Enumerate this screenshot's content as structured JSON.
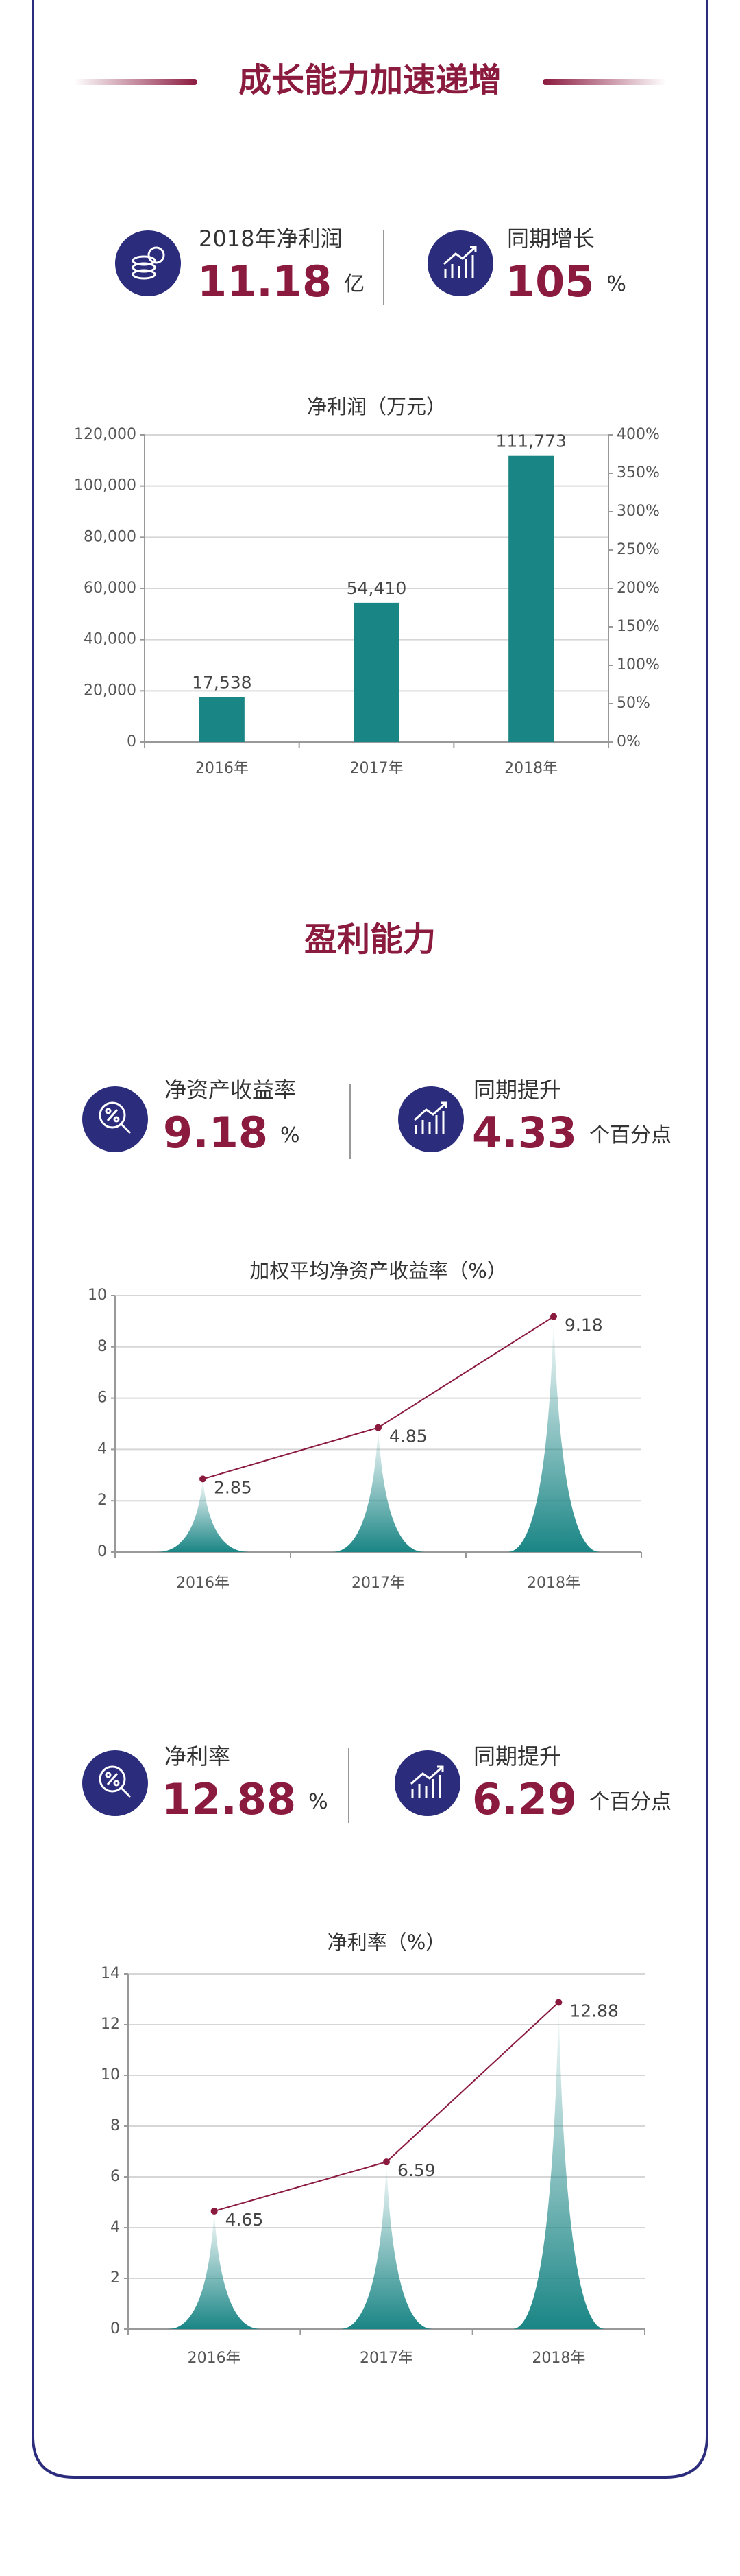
{
  "header": {
    "title": "成长能力加速递增"
  },
  "kpi_row_1": [
    {
      "label": "2018年净利润",
      "value": 11.18,
      "unit": "亿"
    },
    {
      "label": "同期增长",
      "value": 105,
      "unit": "%"
    }
  ],
  "section_2": {
    "title": "盈利能力"
  },
  "kpi_row_2": [
    {
      "label": "净资产收益率",
      "value": 9.18,
      "unit": "%"
    },
    {
      "label": "同期提升",
      "value": 4.33,
      "unit": "个百分点"
    }
  ],
  "kpi_row_3": [
    {
      "label": "净利率",
      "value": 12.88,
      "unit": "%"
    },
    {
      "label": "同期提升",
      "value": 6.29,
      "unit": "个百分点"
    }
  ],
  "chart_data": [
    {
      "type": "bar",
      "title": "净利润（万元）",
      "categories": [
        "2016年",
        "2017年",
        "2018年"
      ],
      "values": [
        17538,
        54410,
        111773
      ],
      "value_labels": [
        "17,538",
        "54,410",
        "111,773"
      ],
      "color": "#1a8585",
      "ylim": [
        0,
        120000
      ],
      "yticks": [
        0,
        {
          "value": 20000,
          "label": "20,000"
        },
        {
          "value": 40000,
          "label": "40,000"
        },
        {
          "value": 60000,
          "label": "60,000"
        },
        {
          "value": 80000,
          "label": "80,000"
        },
        {
          "value": 100000,
          "label": "100,000"
        },
        {
          "value": 120000,
          "label": "120,000"
        }
      ],
      "y2lim": [
        0,
        400
      ],
      "y2ticks": [
        {
          "value": 0,
          "label": "0%"
        },
        {
          "value": 50,
          "label": "50%"
        },
        {
          "value": 100,
          "label": "100%"
        },
        {
          "value": 150,
          "label": "150%"
        },
        {
          "value": 200,
          "label": "200%"
        },
        {
          "value": 250,
          "label": "250%"
        },
        {
          "value": 300,
          "label": "300%"
        },
        {
          "value": 350,
          "label": "350%"
        },
        {
          "value": 400,
          "label": "400%"
        }
      ],
      "grid": true
    },
    {
      "type": "line",
      "title": "加权平均净资产收益率（%）",
      "categories": [
        "2016年",
        "2017年",
        "2018年"
      ],
      "values": [
        2.85,
        4.85,
        9.18
      ],
      "color": "#8b1a3f",
      "area_color": "#1a8585",
      "ylim": [
        0,
        10
      ],
      "yticks": [
        0,
        2,
        4,
        6,
        8,
        10
      ],
      "grid": true
    },
    {
      "type": "line",
      "title": "净利率（%）",
      "categories": [
        "2016年",
        "2017年",
        "2018年"
      ],
      "values": [
        4.65,
        6.59,
        12.88
      ],
      "color": "#8b1a3f",
      "area_color": "#1a8585",
      "ylim": [
        0,
        14
      ],
      "yticks": [
        0,
        2,
        4,
        6,
        8,
        10,
        12,
        14
      ],
      "grid": true
    }
  ]
}
